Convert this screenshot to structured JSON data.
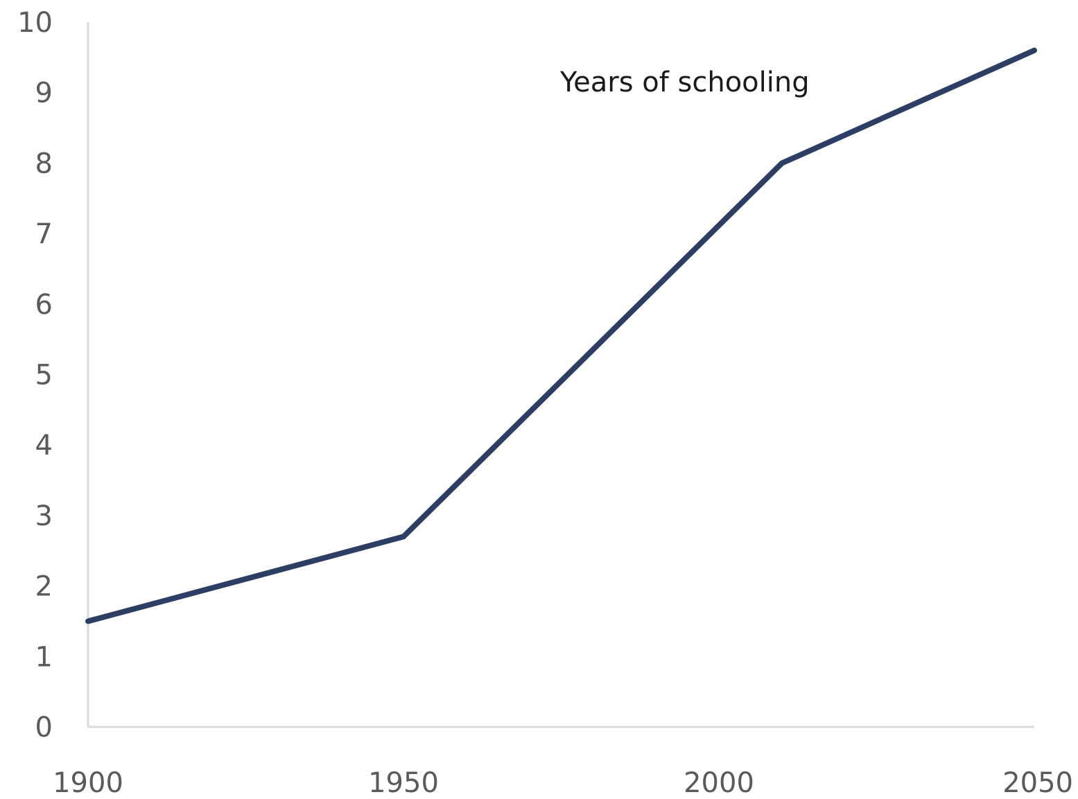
{
  "chart_data": {
    "type": "line",
    "title": "",
    "xlabel": "",
    "ylabel": "",
    "annotation": "Years of schooling",
    "x_ticks": [
      1900,
      1950,
      2000,
      2050
    ],
    "y_ticks": [
      0,
      1,
      2,
      3,
      4,
      5,
      6,
      7,
      8,
      9,
      10
    ],
    "xlim": [
      1900,
      2050
    ],
    "ylim": [
      0,
      10
    ],
    "grid": false,
    "series": [
      {
        "x": [
          1900,
          1950,
          2010,
          2050
        ],
        "values": [
          1.5,
          2.7,
          8.0,
          9.6
        ]
      }
    ],
    "colors": {
      "line": "#2c3e63",
      "axis": "#d9d9d9",
      "tick_text": "#5a5a5a"
    }
  }
}
